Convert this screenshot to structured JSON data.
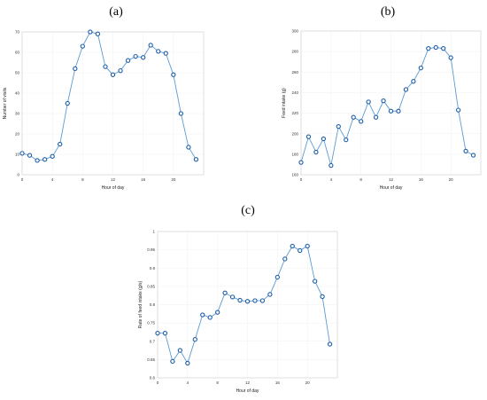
{
  "chart_data": [
    {
      "type": "line",
      "panel_label": "(a)",
      "xlabel": "Hour of day",
      "ylabel": "Number of visits",
      "xlim": [
        0,
        24
      ],
      "ylim": [
        0,
        70
      ],
      "xticks": [
        0,
        4,
        8,
        12,
        16,
        20
      ],
      "yticks": [
        0,
        10,
        20,
        30,
        40,
        50,
        60,
        70
      ],
      "x": [
        0,
        1,
        2,
        3,
        4,
        5,
        6,
        7,
        8,
        9,
        10,
        11,
        12,
        13,
        14,
        15,
        16,
        17,
        18,
        19,
        20,
        21,
        22,
        23
      ],
      "values": [
        10.5,
        9.5,
        7,
        7.5,
        9,
        15,
        35,
        52,
        63,
        70,
        69,
        53,
        49,
        51,
        56,
        58,
        57.5,
        63.5,
        60.5,
        59.5,
        49,
        30,
        13.5,
        7.5
      ]
    },
    {
      "type": "line",
      "panel_label": "(b)",
      "xlabel": "Hour of day",
      "ylabel": "Feed intake (g)",
      "xlim": [
        0,
        24
      ],
      "ylim": [
        160,
        300
      ],
      "xticks": [
        0,
        4,
        8,
        12,
        16,
        20
      ],
      "yticks": [
        160,
        180,
        200,
        220,
        240,
        260,
        280,
        300
      ],
      "x": [
        0,
        1,
        2,
        3,
        4,
        5,
        6,
        7,
        8,
        9,
        10,
        11,
        12,
        13,
        14,
        15,
        16,
        17,
        18,
        19,
        20,
        21,
        22,
        23
      ],
      "values": [
        172,
        197,
        182,
        195,
        169,
        207,
        194,
        216,
        212,
        231,
        216,
        232,
        222,
        222,
        243,
        251,
        264,
        283,
        284,
        283,
        274,
        223,
        183,
        179
      ]
    },
    {
      "type": "line",
      "panel_label": "(c)",
      "xlabel": "Hour of day",
      "ylabel": "Rate of feed intake (g/s)",
      "xlim": [
        0,
        24
      ],
      "ylim": [
        0.6,
        1
      ],
      "xticks": [
        0,
        4,
        8,
        12,
        16,
        20
      ],
      "yticks": [
        0.6,
        0.65,
        0.7,
        0.75,
        0.8,
        0.85,
        0.9,
        0.95,
        1
      ],
      "ytick_labels": [
        "0.6",
        "0.65",
        "0.7",
        "0.75",
        "0.8",
        "0.85",
        "0.9",
        "0.95",
        "1"
      ],
      "x": [
        0,
        1,
        2,
        3,
        4,
        5,
        6,
        7,
        8,
        9,
        10,
        11,
        12,
        13,
        14,
        15,
        16,
        17,
        18,
        19,
        20,
        21,
        22,
        23
      ],
      "values": [
        0.722,
        0.722,
        0.645,
        0.675,
        0.64,
        0.705,
        0.772,
        0.765,
        0.779,
        0.832,
        0.821,
        0.812,
        0.809,
        0.811,
        0.811,
        0.828,
        0.875,
        0.925,
        0.96,
        0.948,
        0.96,
        0.864,
        0.822,
        0.692
      ]
    }
  ]
}
